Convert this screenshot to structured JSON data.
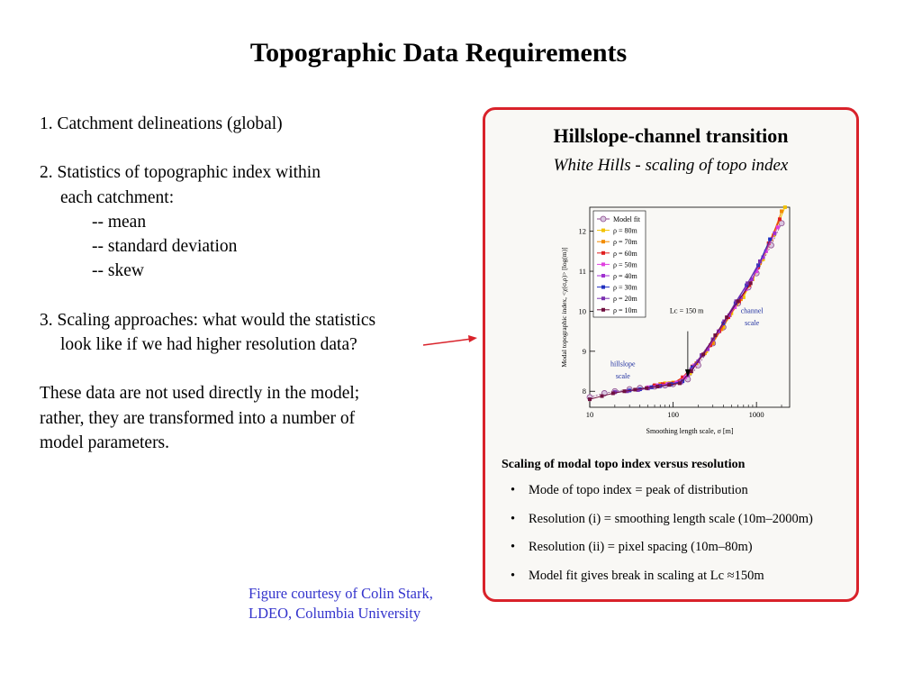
{
  "slide": {
    "title": "Topographic Data Requirements",
    "items": {
      "item1": "1. Catchment delineations (global)",
      "item2_line1": "2. Statistics of topographic index within",
      "item2_line2": "each catchment:",
      "sub_mean": "-- mean",
      "sub_std": "-- standard deviation",
      "sub_skew": "-- skew",
      "item3_line1": "3. Scaling approaches: what would the statistics",
      "item3_line2": "look like if we had higher resolution data?",
      "para_line1": "These data are not used directly in the model;",
      "para_line2": "rather, they are transformed into a number of",
      "para_line3": "model parameters."
    },
    "credit_line1": "Figure courtesy of Colin Stark,",
    "credit_line2": "LDEO, Columbia University",
    "colors": {
      "frame": "#d9222a",
      "arrow": "#d9222a",
      "credit": "#3333cc"
    }
  },
  "figure": {
    "title": "Hillslope-channel transition",
    "subtitle": "White Hills - scaling of topo index",
    "bullets_heading": "Scaling of modal topo index versus resolution",
    "bullets": [
      "Mode of topo index = peak of distribution",
      "Resolution (i) = smoothing length scale (10m–2000m)",
      "Resolution (ii) = pixel spacing (10m–80m)",
      "Model fit gives break in scaling at Lc ≈150m"
    ]
  },
  "chart_data": {
    "type": "scatter",
    "xlabel": "Smoothing length scale, σ  [m]",
    "ylabel": "Modal topographic index, <χ(σ,ρ)>  [log(m)]",
    "x_scale": "log",
    "xlim": [
      10,
      2500
    ],
    "ylim": [
      7.6,
      12.6
    ],
    "x_ticks": [
      "10",
      "100",
      "1000"
    ],
    "y_ticks": [
      "8",
      "9",
      "10",
      "11",
      "12"
    ],
    "legend_position": "top-left",
    "annotations": [
      "Lᴄ = 150 m",
      "channel scale",
      "hillslope scale"
    ],
    "series": [
      {
        "name": "Model fit",
        "color": "#8c4a8c",
        "x": [
          10,
          15,
          20,
          30,
          40,
          60,
          80,
          100,
          150,
          200,
          300,
          400,
          600,
          800,
          1000,
          1500,
          2000
        ],
        "y": [
          7.85,
          7.95,
          8.0,
          8.05,
          8.08,
          8.12,
          8.15,
          8.18,
          8.3,
          8.65,
          9.2,
          9.6,
          10.2,
          10.6,
          10.95,
          11.65,
          12.2
        ]
      },
      {
        "name": "ρ = 80m",
        "color": "#f2c200",
        "x": [
          80,
          100,
          130,
          160,
          200,
          250,
          300,
          400,
          500,
          700,
          900,
          1200,
          1600,
          2200
        ],
        "y": [
          8.2,
          8.22,
          8.28,
          8.45,
          8.75,
          9.0,
          9.25,
          9.6,
          9.95,
          10.35,
          10.8,
          11.3,
          11.9,
          12.6
        ]
      },
      {
        "name": "ρ = 70m",
        "color": "#f28c00",
        "x": [
          70,
          90,
          120,
          150,
          190,
          240,
          300,
          380,
          480,
          650,
          850,
          1100,
          1500,
          2000
        ],
        "y": [
          8.18,
          8.2,
          8.25,
          8.42,
          8.7,
          8.95,
          9.2,
          9.55,
          9.9,
          10.3,
          10.7,
          11.2,
          11.8,
          12.5
        ]
      },
      {
        "name": "ρ = 60m",
        "color": "#e02020",
        "x": [
          60,
          75,
          100,
          130,
          170,
          220,
          280,
          360,
          460,
          620,
          820,
          1050,
          1400,
          1900
        ],
        "y": [
          8.15,
          8.18,
          8.2,
          8.35,
          8.62,
          8.9,
          9.15,
          9.5,
          9.85,
          10.25,
          10.65,
          11.1,
          11.7,
          12.3
        ]
      },
      {
        "name": "ρ = 50m",
        "color": "#e040e0",
        "x": [
          50,
          65,
          85,
          110,
          140,
          180,
          230,
          300,
          400,
          550,
          750,
          1000,
          1300,
          1800
        ],
        "y": [
          8.1,
          8.15,
          8.18,
          8.22,
          8.35,
          8.65,
          8.92,
          9.3,
          9.7,
          10.1,
          10.55,
          11.0,
          11.5,
          12.1
        ]
      },
      {
        "name": "ρ = 40m",
        "color": "#a030d0",
        "x": [
          40,
          55,
          70,
          90,
          120,
          150,
          200,
          260,
          350,
          470,
          650,
          880,
          1200,
          1650
        ],
        "y": [
          8.05,
          8.1,
          8.14,
          8.18,
          8.22,
          8.4,
          8.75,
          9.05,
          9.5,
          9.9,
          10.35,
          10.8,
          11.35,
          11.95
        ]
      },
      {
        "name": "ρ = 30m",
        "color": "#2030c0",
        "x": [
          30,
          40,
          55,
          70,
          95,
          130,
          170,
          220,
          300,
          400,
          560,
          760,
          1050,
          1450
        ],
        "y": [
          8.02,
          8.05,
          8.1,
          8.13,
          8.18,
          8.25,
          8.6,
          8.9,
          9.3,
          9.7,
          10.2,
          10.65,
          11.15,
          11.8
        ]
      },
      {
        "name": "ρ = 20m",
        "color": "#7a30b0",
        "x": [
          20,
          28,
          38,
          50,
          68,
          90,
          125,
          165,
          220,
          300,
          410,
          570,
          780,
          1100
        ],
        "y": [
          7.98,
          8.0,
          8.03,
          8.07,
          8.12,
          8.16,
          8.22,
          8.55,
          8.9,
          9.3,
          9.75,
          10.25,
          10.7,
          11.25
        ]
      },
      {
        "name": "ρ = 10m",
        "color": "#701040",
        "x": [
          10,
          14,
          19,
          26,
          35,
          48,
          65,
          90,
          120,
          165,
          230,
          320,
          440,
          600,
          850
        ],
        "y": [
          7.8,
          7.88,
          7.95,
          8.0,
          8.04,
          8.08,
          8.12,
          8.16,
          8.2,
          8.5,
          8.92,
          9.4,
          9.85,
          10.25,
          10.7
        ]
      }
    ]
  }
}
